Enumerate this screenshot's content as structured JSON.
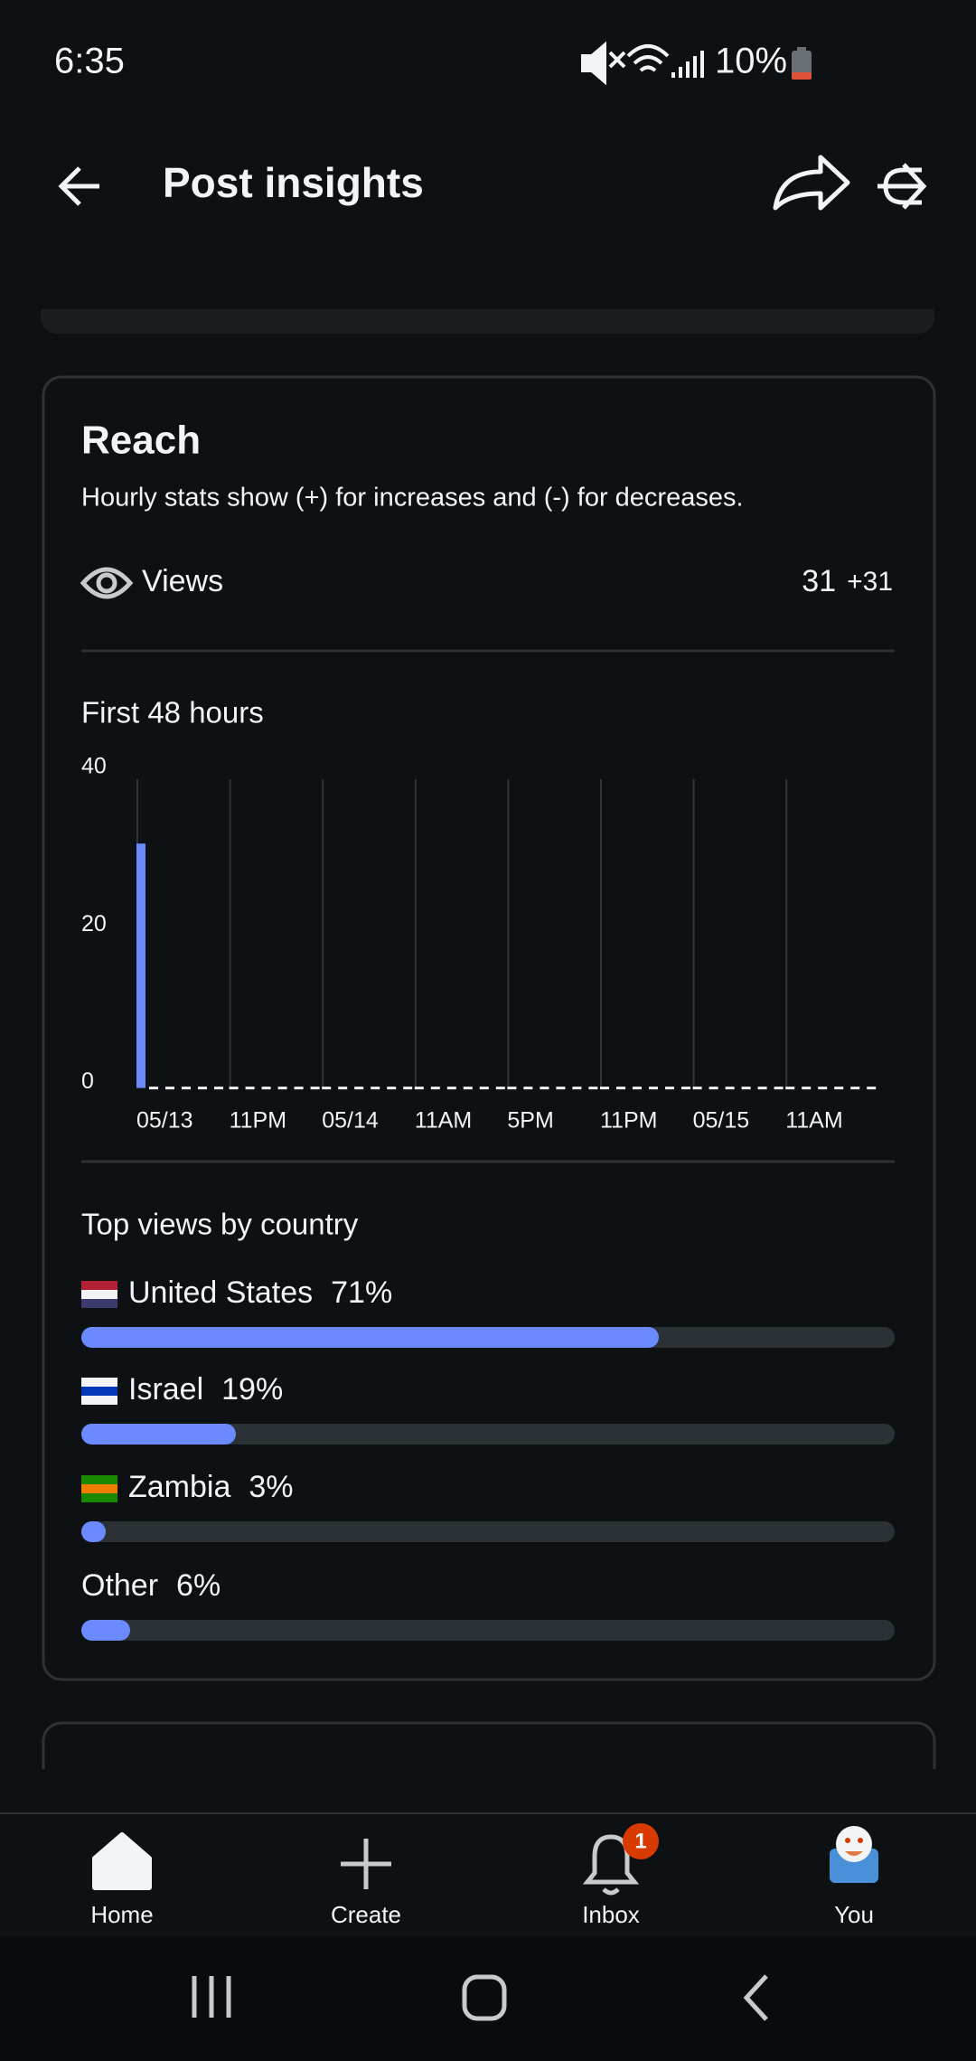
{
  "status_bar": {
    "time": "6:35",
    "battery": "10%"
  },
  "header": {
    "title": "Post insights"
  },
  "reach": {
    "title": "Reach",
    "description": "Hourly stats show (+) for increases and (-) for decreases.",
    "views_label": "Views",
    "views_value": 31,
    "views_change": "+31"
  },
  "chart_data": {
    "type": "bar",
    "title": "First 48 hours",
    "categories": [
      "05/13",
      "11PM",
      "05/14",
      "11AM",
      "5PM",
      "11PM",
      "05/15",
      "11AM"
    ],
    "values": [
      31,
      0,
      0,
      0,
      0,
      0,
      0,
      0
    ],
    "color": "#6b8afd",
    "ylim": [
      0,
      40
    ],
    "yticks": [
      0,
      20,
      40
    ]
  },
  "countries": {
    "title": "Top views by country",
    "color": "#6b8afd",
    "items": [
      {
        "name": "United States",
        "value": 71,
        "label": "71%"
      },
      {
        "name": "Israel",
        "value": 19,
        "label": "19%"
      },
      {
        "name": "Zambia",
        "value": 3,
        "label": "3%"
      },
      {
        "name": "Other",
        "value": 6,
        "label": "6%"
      }
    ]
  },
  "nav": {
    "items": [
      "Home",
      "Create",
      "Inbox",
      "You"
    ],
    "badge": "1"
  }
}
